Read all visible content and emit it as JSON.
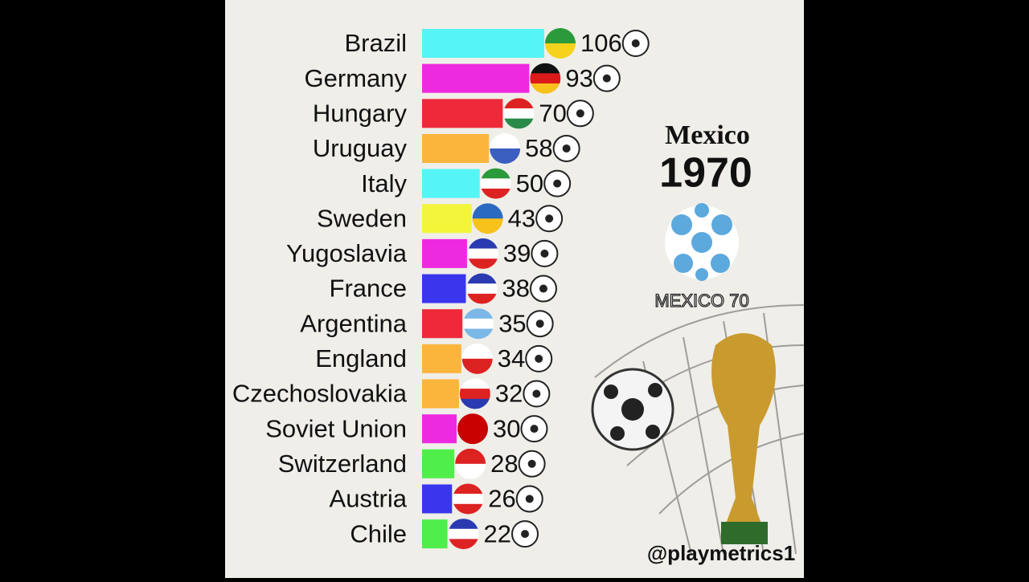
{
  "chart_data": {
    "type": "bar",
    "orientation": "horizontal",
    "title": "Mexico",
    "subtitle": "1970",
    "logo_text": "MEXICO 70",
    "watermark": "@playmetrics1",
    "categories": [
      "Brazil",
      "Germany",
      "Hungary",
      "Uruguay",
      "Italy",
      "Sweden",
      "Yugoslavia",
      "France",
      "Argentina",
      "England",
      "Czechoslovakia",
      "Soviet Union",
      "Switzerland",
      "Austria",
      "Chile"
    ],
    "values": [
      106,
      93,
      70,
      58,
      50,
      43,
      39,
      38,
      35,
      34,
      32,
      30,
      28,
      26,
      22
    ],
    "colors": [
      "#55f5f5",
      "#ee2ae0",
      "#ee2a3a",
      "#fbb43c",
      "#55f5f5",
      "#f2f53a",
      "#ee2ae0",
      "#3a36ee",
      "#ee2a3a",
      "#fbb43c",
      "#fbb43c",
      "#ee2ae0",
      "#50ee4a",
      "#3a36ee",
      "#50ee4a"
    ]
  }
}
